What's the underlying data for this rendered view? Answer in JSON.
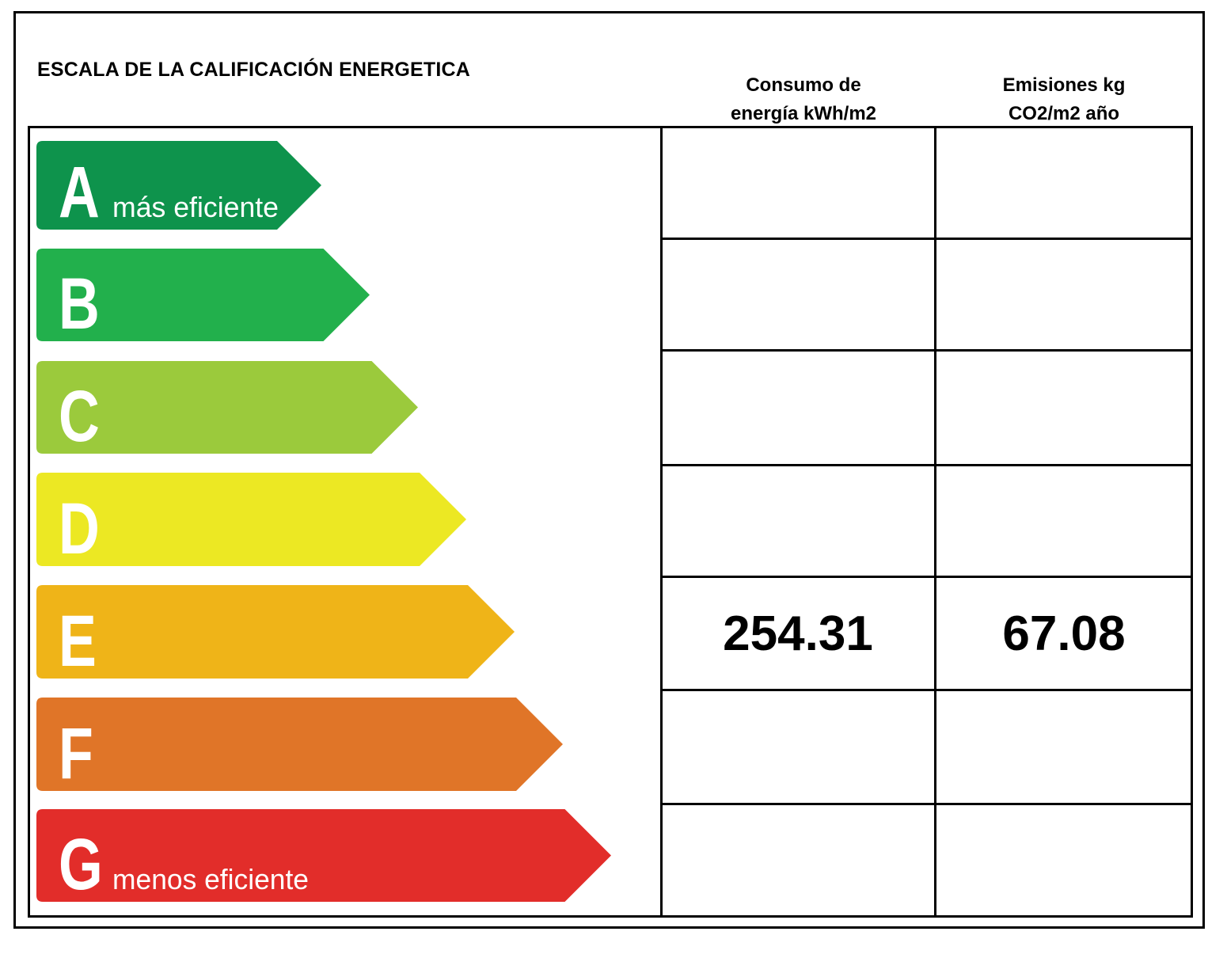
{
  "title": "ESCALA DE LA CALIFICACIÓN ENERGETICA",
  "columns": {
    "energy": [
      "Consumo de",
      "energía kWh/m2"
    ],
    "emissions": [
      "Emisiones kg",
      "CO2/m2 año"
    ]
  },
  "rating": {
    "letter": "E",
    "energy_value": "254.31",
    "emissions_value": "67.08"
  },
  "bars": [
    {
      "letter": "A",
      "subtitle": "más eficiente",
      "color": "#0e934c"
    },
    {
      "letter": "B",
      "subtitle": "",
      "color": "#22b04c"
    },
    {
      "letter": "C",
      "subtitle": "",
      "color": "#9bca3c"
    },
    {
      "letter": "D",
      "subtitle": "",
      "color": "#ece823"
    },
    {
      "letter": "E",
      "subtitle": "",
      "color": "#efb418"
    },
    {
      "letter": "F",
      "subtitle": "",
      "color": "#e07528"
    },
    {
      "letter": "G",
      "subtitle": "menos eficiente",
      "color": "#e22d2a"
    }
  ]
}
